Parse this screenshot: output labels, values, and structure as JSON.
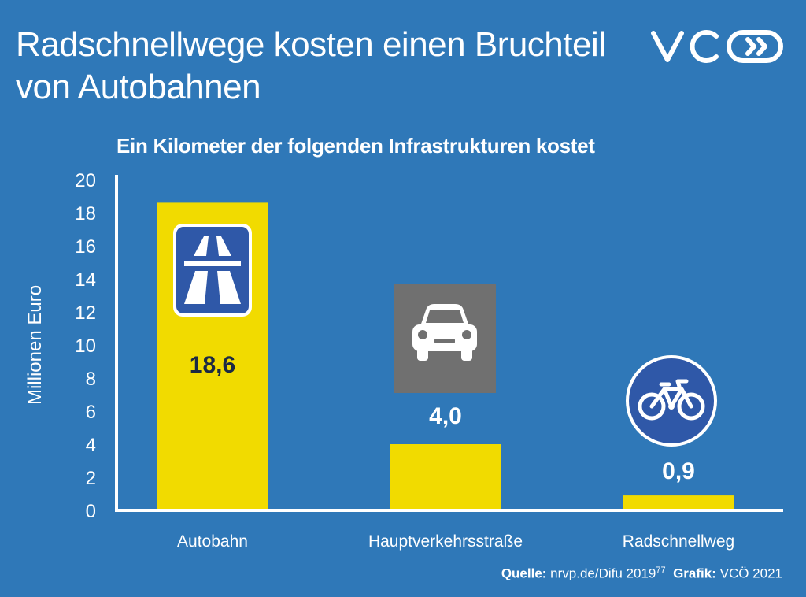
{
  "title_line1": "Radschnellwege kosten einen Bruchteil",
  "title_line2": "von Autobahnen",
  "brand": "VCÖ",
  "colors": {
    "background": "#2f78b8",
    "bar": "#f1db00",
    "sign_blue": "#2f58a8",
    "sign_grey": "#707070"
  },
  "source": {
    "quelle_label": "Quelle:",
    "quelle_text": "nrvp.de/Difu 2019",
    "quelle_ref": "77",
    "grafik_label": "Grafik:",
    "grafik_text": "VCÖ 2021"
  },
  "chart_data": {
    "type": "bar",
    "title": "Ein Kilometer der folgenden Infrastrukturen kostet",
    "ylabel": "Millionen Euro",
    "xlabel": "",
    "ylim": [
      0,
      20
    ],
    "yticks": [
      "0",
      "2",
      "4",
      "6",
      "8",
      "10",
      "12",
      "14",
      "16",
      "18",
      "20"
    ],
    "grid": false,
    "categories": [
      "Autobahn",
      "Hauptverkehrsstraße",
      "Radschnellweg"
    ],
    "values": [
      18.6,
      4.0,
      0.9
    ],
    "value_labels": [
      "18,6",
      "4,0",
      "0,9"
    ],
    "icons": [
      "motorway-sign-icon",
      "car-sign-icon",
      "bicycle-sign-icon"
    ]
  }
}
